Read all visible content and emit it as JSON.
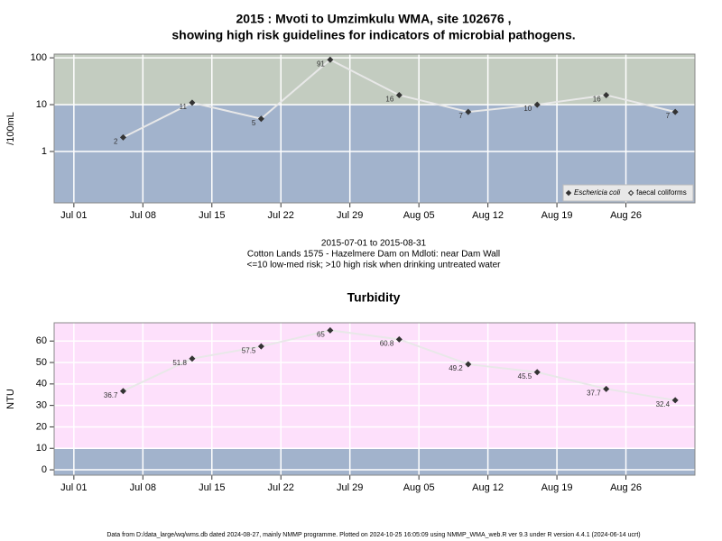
{
  "chart_data": [
    {
      "type": "line",
      "title": [
        "2015 : Mvoti to Umzimkulu WMA, site 102676 ,",
        "showing high risk guidelines for indicators of microbial pathogens."
      ],
      "subtitle": [
        "2015-07-01 to 2015-08-31",
        "Cotton Lands 1575 - Hazelmere Dam on Mdloti: near Dam Wall",
        "<=10 low-med risk; >10 high risk when drinking untreated water"
      ],
      "y_label": "/100mL",
      "log_scale": true,
      "x": [
        "2015-07-06",
        "2015-07-13",
        "2015-07-20",
        "2015-07-27",
        "2015-08-03",
        "2015-08-10",
        "2015-08-17",
        "2015-08-24",
        "2015-08-31"
      ],
      "series": [
        {
          "name": "Eschericia coli",
          "color": "#333333",
          "values": [
            2,
            11,
            5,
            91,
            16,
            7,
            10,
            16,
            7
          ]
        },
        {
          "name": "faecal coliforms",
          "color": "#333333",
          "values": [
            null,
            null,
            null,
            null,
            null,
            null,
            null,
            null,
            null
          ]
        }
      ],
      "line_color": "#e8e8e8",
      "threshold": 10,
      "below_color": "#a2b3cc",
      "above_color": "#c3ccc0",
      "xlim": [
        "2015-06-29",
        "2015-09-02"
      ],
      "xticks": [
        {
          "value": "2015-07-01",
          "label": "Jul 01"
        },
        {
          "value": "2015-07-08",
          "label": "Jul 08"
        },
        {
          "value": "2015-07-15",
          "label": "Jul 15"
        },
        {
          "value": "2015-07-22",
          "label": "Jul 22"
        },
        {
          "value": "2015-07-29",
          "label": "Jul 29"
        },
        {
          "value": "2015-08-05",
          "label": "Aug 05"
        },
        {
          "value": "2015-08-12",
          "label": "Aug 12"
        },
        {
          "value": "2015-08-19",
          "label": "Aug 19"
        },
        {
          "value": "2015-08-26",
          "label": "Aug 26"
        }
      ],
      "ylim": [
        0.08,
        120
      ],
      "yticks": [
        1,
        10,
        100
      ],
      "grid": true,
      "legend": "bottom-right"
    },
    {
      "type": "line",
      "title": [
        "Turbidity"
      ],
      "y_label": "NTU",
      "log_scale": false,
      "x": [
        "2015-07-06",
        "2015-07-13",
        "2015-07-20",
        "2015-07-27",
        "2015-08-03",
        "2015-08-10",
        "2015-08-17",
        "2015-08-24",
        "2015-08-31"
      ],
      "series": [
        {
          "name": "Turbidity",
          "color": "#333333",
          "values": [
            36.7,
            51.8,
            57.5,
            65,
            60.8,
            49.2,
            45.5,
            37.7,
            32.4
          ]
        }
      ],
      "line_color": "#e8e8e8",
      "threshold": 10,
      "below_color": "#a2b3cc",
      "above_color": "#fde0fb",
      "xlim": [
        "2015-06-29",
        "2015-09-02"
      ],
      "xticks": [
        {
          "value": "2015-07-01",
          "label": "Jul 01"
        },
        {
          "value": "2015-07-08",
          "label": "Jul 08"
        },
        {
          "value": "2015-07-15",
          "label": "Jul 15"
        },
        {
          "value": "2015-07-22",
          "label": "Jul 22"
        },
        {
          "value": "2015-07-29",
          "label": "Jul 29"
        },
        {
          "value": "2015-08-05",
          "label": "Aug 05"
        },
        {
          "value": "2015-08-12",
          "label": "Aug 12"
        },
        {
          "value": "2015-08-19",
          "label": "Aug 19"
        },
        {
          "value": "2015-08-26",
          "label": "Aug 26"
        }
      ],
      "ylim": [
        -2.5,
        68.5
      ],
      "yticks": [
        0,
        10,
        20,
        30,
        40,
        50,
        60
      ],
      "grid": true
    }
  ],
  "footer": "Data from D:/data_large/wq/wms.db dated 2024-08-27, mainly NMMP programme. Plotted on 2024-10-25 16:05:09 using NMMP_WMA_web.R ver 9.3 under R version 4.4.1 (2024-06-14 ucrt)"
}
